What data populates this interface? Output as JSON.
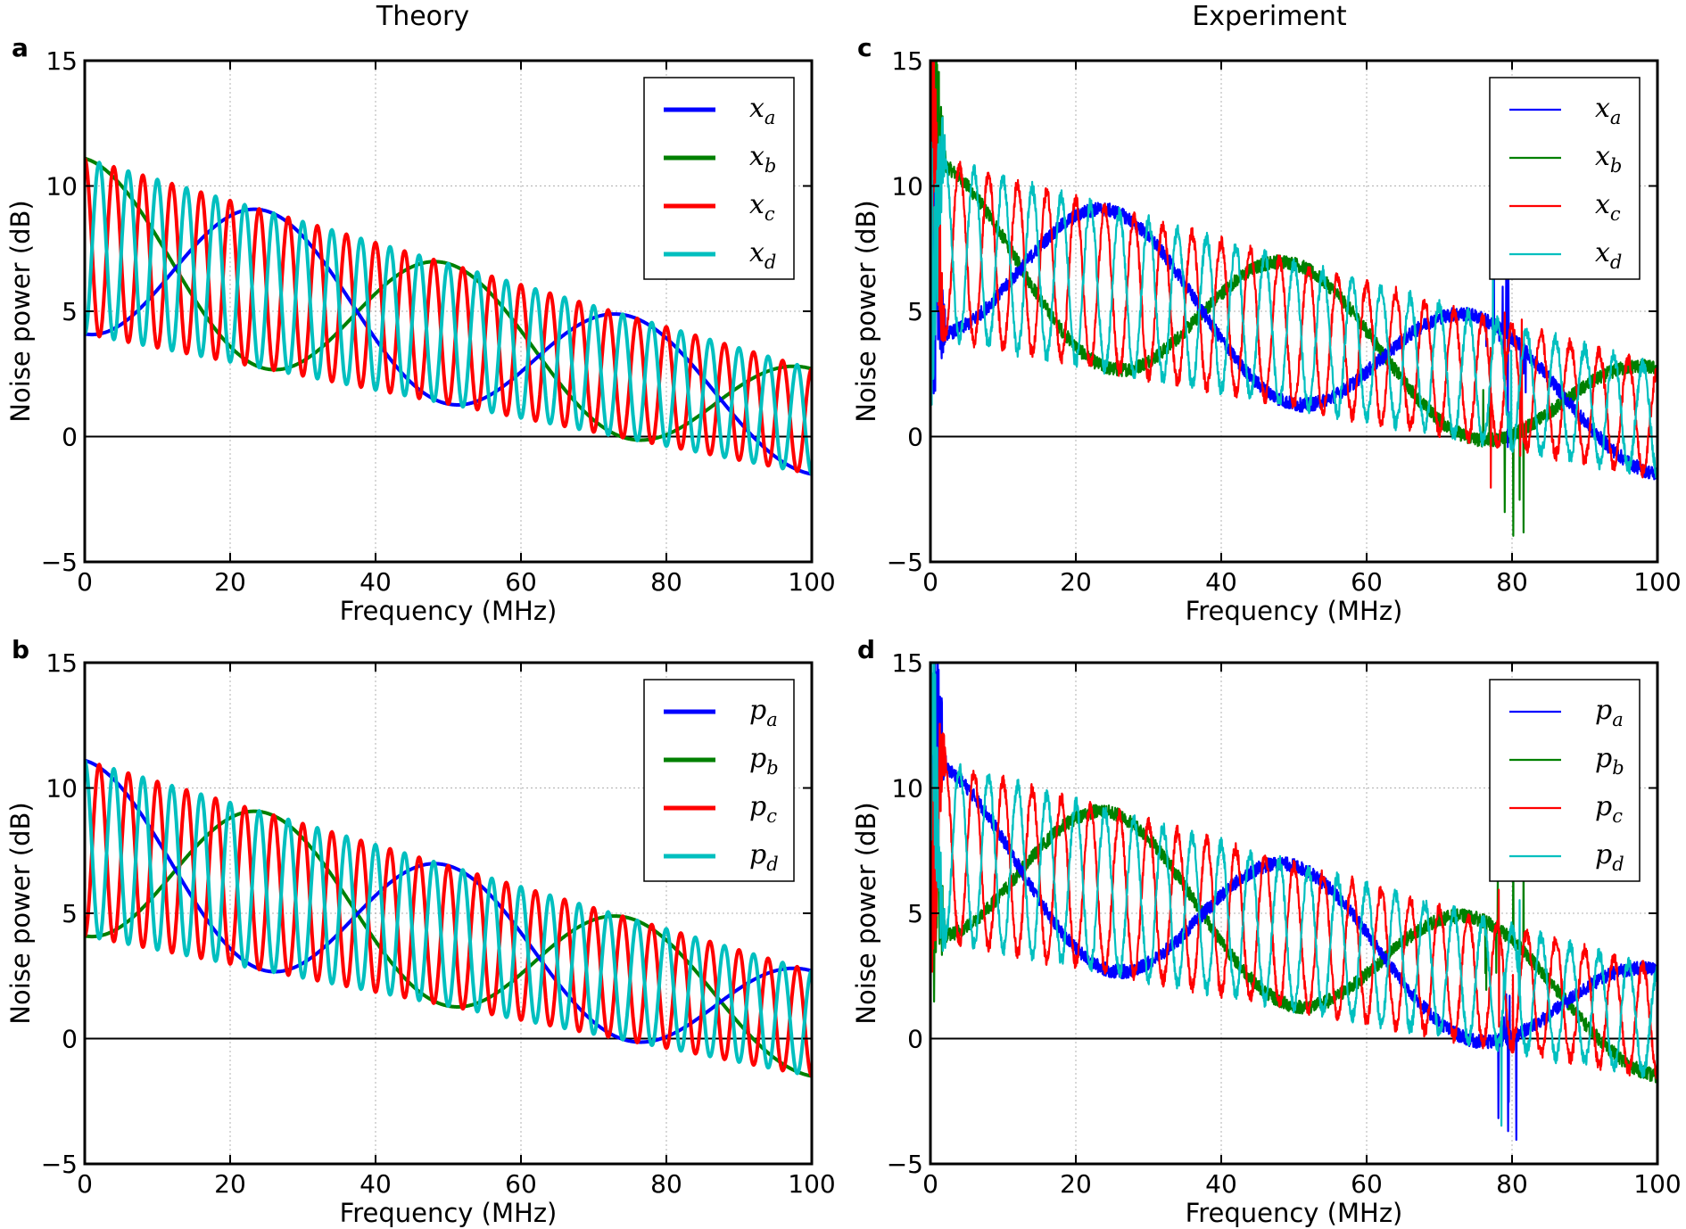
{
  "column_titles": [
    "Theory",
    "Experiment"
  ],
  "colors": {
    "a": "#0000ff",
    "b": "#008000",
    "c": "#ff0000",
    "d": "#00bfbf"
  },
  "chart_data": [
    {
      "panel": "a",
      "type": "line",
      "column": "Theory",
      "title": "",
      "xlabel": "Frequency (MHz)",
      "ylabel": "Noise power (dB)",
      "xlim": [
        0,
        100
      ],
      "ylim": [
        -5,
        15
      ],
      "xticks": [
        "0",
        "20",
        "40",
        "60",
        "80",
        "100"
      ],
      "yticks": [
        "−5",
        "0",
        "5",
        "10",
        "15"
      ],
      "grid": true,
      "legend_position": "top-right",
      "series": [
        {
          "name": "x_a",
          "symbol": "x",
          "sub": "a",
          "key": "a",
          "period": 50,
          "phase": 0.5
        },
        {
          "name": "x_b",
          "symbol": "x",
          "sub": "b",
          "key": "b",
          "period": 50,
          "phase": 0.0
        },
        {
          "name": "x_c",
          "symbol": "x",
          "sub": "c",
          "key": "c",
          "period": 4.0,
          "phase": 0.0
        },
        {
          "name": "x_d",
          "symbol": "x",
          "sub": "d",
          "key": "d",
          "period": 4.0,
          "phase": 0.5
        }
      ]
    },
    {
      "panel": "b",
      "type": "line",
      "column": "Theory",
      "title": "",
      "xlabel": "Frequency (MHz)",
      "ylabel": "Noise power (dB)",
      "xlim": [
        0,
        100
      ],
      "ylim": [
        -5,
        15
      ],
      "xticks": [
        "0",
        "20",
        "40",
        "60",
        "80",
        "100"
      ],
      "yticks": [
        "−5",
        "0",
        "5",
        "10",
        "15"
      ],
      "grid": true,
      "legend_position": "top-right",
      "series": [
        {
          "name": "p_a",
          "symbol": "p",
          "sub": "a",
          "key": "a",
          "period": 50,
          "phase": 0.0
        },
        {
          "name": "p_b",
          "symbol": "p",
          "sub": "b",
          "key": "b",
          "period": 50,
          "phase": 0.5
        },
        {
          "name": "p_c",
          "symbol": "p",
          "sub": "c",
          "key": "c",
          "period": 4.0,
          "phase": 0.5
        },
        {
          "name": "p_d",
          "symbol": "p",
          "sub": "d",
          "key": "d",
          "period": 4.0,
          "phase": 0.0
        }
      ]
    },
    {
      "panel": "c",
      "type": "line",
      "column": "Experiment",
      "title": "",
      "xlabel": "Frequency (MHz)",
      "ylabel": "Noise power (dB)",
      "xlim": [
        0,
        100
      ],
      "ylim": [
        -5,
        15
      ],
      "xticks": [
        "0",
        "20",
        "40",
        "60",
        "80",
        "100"
      ],
      "yticks": [
        "−5",
        "0",
        "5",
        "10",
        "15"
      ],
      "grid": true,
      "legend_position": "top-right",
      "series": [
        {
          "name": "x_a",
          "symbol": "x",
          "sub": "a",
          "key": "a",
          "period": 50,
          "phase": 0.5
        },
        {
          "name": "x_b",
          "symbol": "x",
          "sub": "b",
          "key": "b",
          "period": 50,
          "phase": 0.0
        },
        {
          "name": "x_c",
          "symbol": "x",
          "sub": "c",
          "key": "c",
          "period": 4.0,
          "phase": 0.0
        },
        {
          "name": "x_d",
          "symbol": "x",
          "sub": "d",
          "key": "d",
          "period": 4.0,
          "phase": 0.5
        }
      ]
    },
    {
      "panel": "d",
      "type": "line",
      "column": "Experiment",
      "title": "",
      "xlabel": "Frequency (MHz)",
      "ylabel": "Noise power (dB)",
      "xlim": [
        0,
        100
      ],
      "ylim": [
        -5,
        15
      ],
      "xticks": [
        "0",
        "20",
        "40",
        "60",
        "80",
        "100"
      ],
      "yticks": [
        "−5",
        "0",
        "5",
        "10",
        "15"
      ],
      "grid": true,
      "legend_position": "top-right",
      "series": [
        {
          "name": "p_a",
          "symbol": "p",
          "sub": "a",
          "key": "a",
          "period": 50,
          "phase": 0.0
        },
        {
          "name": "p_b",
          "symbol": "p",
          "sub": "b",
          "key": "b",
          "period": 50,
          "phase": 0.5
        },
        {
          "name": "p_c",
          "symbol": "p",
          "sub": "c",
          "key": "c",
          "period": 4.0,
          "phase": 0.5
        },
        {
          "name": "p_d",
          "symbol": "p",
          "sub": "d",
          "key": "d",
          "period": 4.0,
          "phase": 0.0
        }
      ]
    }
  ]
}
